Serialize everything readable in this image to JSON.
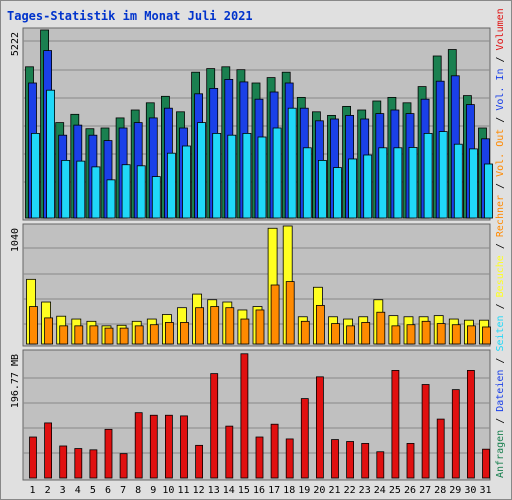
{
  "title": "Tages-Statistik im Monat Juli 2021",
  "colors": {
    "frame": "#e0e0e0",
    "plot": "#c0c0c0",
    "grid": "#888888",
    "anfragen": "#1a8050",
    "dateien": "#1a40e8",
    "seiten": "#20d8f8",
    "besuche": "#ffff20",
    "rechner": "#ff8a00",
    "volumen": "#e01010",
    "weekend": "#208020",
    "weekday": "#000000",
    "separator": "#000000"
  },
  "chart_data": [
    {
      "type": "bar",
      "panel": "top",
      "y_max_label": "5222",
      "ylim": [
        0,
        5222
      ],
      "categories": [
        "1",
        "2",
        "3",
        "4",
        "5",
        "6",
        "7",
        "8",
        "9",
        "10",
        "11",
        "12",
        "13",
        "14",
        "15",
        "16",
        "17",
        "18",
        "19",
        "20",
        "21",
        "22",
        "23",
        "24",
        "25",
        "26",
        "27",
        "28",
        "29",
        "30",
        "31"
      ],
      "weekend_days": [
        3,
        4,
        10,
        11,
        17,
        18,
        24,
        25,
        31
      ],
      "series": [
        {
          "name": "Anfragen",
          "color_key": "anfragen",
          "values": [
            4200,
            5222,
            2650,
            2880,
            2480,
            2500,
            2780,
            3000,
            3200,
            3380,
            2950,
            4050,
            4150,
            4200,
            4120,
            3750,
            3900,
            4050,
            3350,
            2950,
            2850,
            3100,
            3000,
            3250,
            3350,
            3200,
            3650,
            4500,
            4680,
            3400,
            2500
          ]
        },
        {
          "name": "Dateien",
          "color_key": "dateien",
          "values": [
            3750,
            4650,
            2300,
            2580,
            2300,
            2150,
            2500,
            2650,
            2780,
            3050,
            2500,
            3450,
            3600,
            3850,
            3780,
            3300,
            3500,
            3750,
            3050,
            2700,
            2750,
            2850,
            2750,
            2900,
            3000,
            2900,
            3300,
            3800,
            3950,
            3150,
            2200
          ]
        },
        {
          "name": "Seiten",
          "color_key": "seiten",
          "values": [
            2350,
            3550,
            1600,
            1580,
            1420,
            1060,
            1480,
            1450,
            1150,
            1800,
            2000,
            2650,
            2350,
            2300,
            2350,
            2250,
            2500,
            3050,
            1950,
            1600,
            1400,
            1640,
            1750,
            1950,
            1950,
            1960,
            2350,
            2400,
            2050,
            1920,
            1500
          ]
        }
      ]
    },
    {
      "type": "bar",
      "panel": "middle",
      "y_max_label": "1040",
      "ylim": [
        0,
        1040
      ],
      "categories": [
        "1",
        "2",
        "3",
        "4",
        "5",
        "6",
        "7",
        "8",
        "9",
        "10",
        "11",
        "12",
        "13",
        "14",
        "15",
        "16",
        "17",
        "18",
        "19",
        "20",
        "21",
        "22",
        "23",
        "24",
        "25",
        "26",
        "27",
        "28",
        "29",
        "30",
        "31"
      ],
      "series": [
        {
          "name": "Besuche",
          "color_key": "besuche",
          "values": [
            570,
            370,
            245,
            220,
            200,
            160,
            165,
            200,
            220,
            260,
            320,
            440,
            390,
            370,
            300,
            330,
            1020,
            1040,
            240,
            500,
            240,
            220,
            240,
            390,
            250,
            240,
            240,
            250,
            220,
            210,
            210
          ]
        },
        {
          "name": "Rechner",
          "color_key": "rechner",
          "values": [
            330,
            230,
            160,
            160,
            160,
            140,
            140,
            160,
            170,
            190,
            190,
            320,
            330,
            320,
            220,
            300,
            520,
            550,
            200,
            340,
            180,
            160,
            190,
            280,
            160,
            170,
            200,
            180,
            170,
            160,
            150
          ]
        }
      ]
    },
    {
      "type": "bar",
      "panel": "bottom",
      "y_max_label": "196.77 MB",
      "ylim": [
        0,
        196.77
      ],
      "categories": [
        "1",
        "2",
        "3",
        "4",
        "5",
        "6",
        "7",
        "8",
        "9",
        "10",
        "11",
        "12",
        "13",
        "14",
        "15",
        "16",
        "17",
        "18",
        "19",
        "20",
        "21",
        "22",
        "23",
        "24",
        "25",
        "26",
        "27",
        "28",
        "29",
        "30",
        "31"
      ],
      "series": [
        {
          "name": "Volumen",
          "color_key": "volumen",
          "values": [
            64,
            86,
            50,
            46,
            44,
            76,
            38,
            102,
            98,
            98,
            97,
            51,
            163,
            81,
            194,
            64,
            84,
            61,
            124,
            158,
            60,
            57,
            54,
            41,
            168,
            54,
            146,
            92,
            138,
            168,
            45
          ]
        }
      ]
    }
  ],
  "side_labels": [
    {
      "text": "Anfragen",
      "color_key": "anfragen"
    },
    {
      "text": "/",
      "color_key": "separator"
    },
    {
      "text": "Dateien",
      "color_key": "dateien"
    },
    {
      "text": "/",
      "color_key": "separator"
    },
    {
      "text": "Seiten",
      "color_key": "seiten"
    },
    {
      "text": "/",
      "color_key": "separator"
    },
    {
      "text": "Besuche",
      "color_key": "besuche"
    },
    {
      "text": "/",
      "color_key": "separator"
    },
    {
      "text": "Rechner",
      "color_key": "rechner"
    },
    {
      "text": "/",
      "color_key": "separator"
    },
    {
      "text": "Vol. Out",
      "color_key": "rechner"
    },
    {
      "text": "/",
      "color_key": "separator"
    },
    {
      "text": "Vol. In",
      "color_key": "dateien"
    },
    {
      "text": "/",
      "color_key": "separator"
    },
    {
      "text": "Volumen",
      "color_key": "volumen"
    }
  ]
}
